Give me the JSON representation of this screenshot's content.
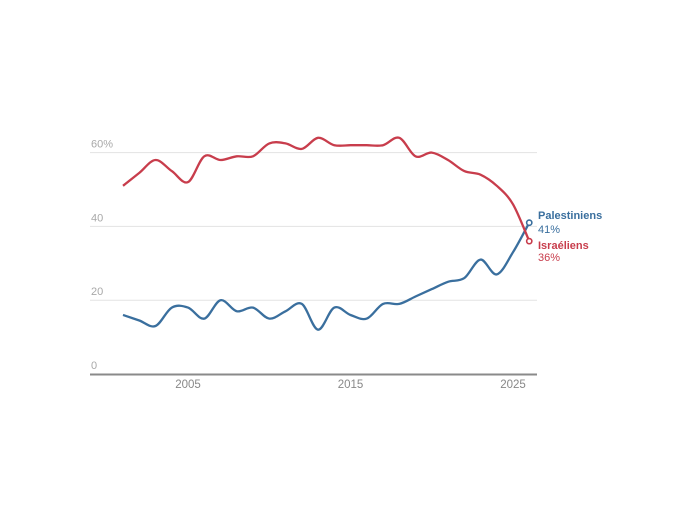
{
  "chart_data": {
    "type": "line",
    "title": "",
    "xlabel": "",
    "ylabel": "",
    "x": [
      2001,
      2002,
      2003,
      2004,
      2005,
      2006,
      2007,
      2008,
      2009,
      2010,
      2011,
      2012,
      2013,
      2014,
      2015,
      2016,
      2017,
      2018,
      2019,
      2020,
      2021,
      2022,
      2023,
      2024,
      2025,
      2026
    ],
    "xlim": [
      1997,
      2026.5
    ],
    "ylim": [
      0,
      60
    ],
    "yticks": [
      {
        "value": 0,
        "label": "0"
      },
      {
        "value": 20,
        "label": "20"
      },
      {
        "value": 40,
        "label": "40"
      },
      {
        "value": 60,
        "label": "60%"
      }
    ],
    "xticks": [
      {
        "value": 2005,
        "label": "2005"
      },
      {
        "value": 2015,
        "label": "2015"
      },
      {
        "value": 2025,
        "label": "2025"
      }
    ],
    "grid": true,
    "series": [
      {
        "name": "Palestiniens",
        "end_label": "41%",
        "color": "#3a6f9e",
        "values": [
          16,
          14.5,
          13,
          18,
          18,
          15,
          20,
          17,
          18,
          15,
          17,
          19,
          12,
          18,
          16,
          15,
          19,
          19,
          21,
          23,
          25,
          26,
          31,
          27,
          33,
          41
        ]
      },
      {
        "name": "Israéliens",
        "end_label": "36%",
        "color": "#c83d4c",
        "values": [
          51,
          54.5,
          58,
          55,
          52,
          59,
          58,
          59,
          59,
          62.5,
          62.5,
          61,
          64,
          62,
          62,
          62,
          62,
          64,
          59,
          60,
          58,
          55,
          54,
          51,
          46,
          36
        ]
      }
    ]
  }
}
